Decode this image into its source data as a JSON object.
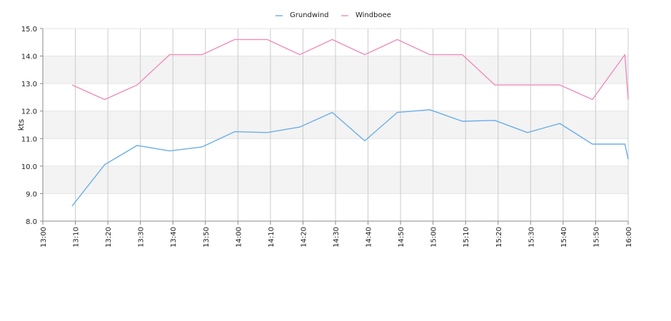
{
  "chart_data": {
    "type": "line",
    "title": "",
    "xlabel": "",
    "ylabel": "kts",
    "ylim": [
      8.0,
      15.0
    ],
    "yticks": [
      "8.0",
      "9.0",
      "10.0",
      "11.0",
      "12.0",
      "13.0",
      "14.0",
      "15.0"
    ],
    "x_tick_labels": [
      "13:00",
      "13:10",
      "13:20",
      "13:30",
      "13:40",
      "13:50",
      "14:00",
      "14:10",
      "14:20",
      "14:30",
      "14:40",
      "14:50",
      "15:00",
      "15:10",
      "15:20",
      "15:30",
      "15:40",
      "15:50",
      "16:00"
    ],
    "x_domain_minutes": [
      0,
      180
    ],
    "grid": {
      "vertical": true,
      "horizontal_bands": true
    },
    "legend_position": "top-center",
    "series": [
      {
        "name": "Grundwind",
        "color": "#6aaee8",
        "x": [
          9,
          19,
          29,
          39,
          49,
          59,
          69,
          79,
          89,
          99,
          109,
          119,
          129,
          139,
          149,
          159,
          169,
          179,
          180
        ],
        "values": [
          8.55,
          10.05,
          10.75,
          10.55,
          10.7,
          11.25,
          11.22,
          11.42,
          11.95,
          10.92,
          11.95,
          12.05,
          11.63,
          11.66,
          11.22,
          11.55,
          10.8,
          10.8,
          10.25
        ]
      },
      {
        "name": "Windboee",
        "color": "#ee8cbb",
        "x": [
          9,
          19,
          29,
          39,
          49,
          59,
          69,
          79,
          89,
          99,
          109,
          119,
          129,
          139,
          149,
          159,
          169,
          179,
          180
        ],
        "values": [
          12.95,
          12.42,
          12.95,
          14.05,
          14.05,
          14.6,
          14.6,
          14.05,
          14.6,
          14.05,
          14.6,
          14.05,
          14.05,
          12.95,
          12.95,
          12.95,
          12.42,
          14.05,
          12.42
        ]
      }
    ]
  }
}
